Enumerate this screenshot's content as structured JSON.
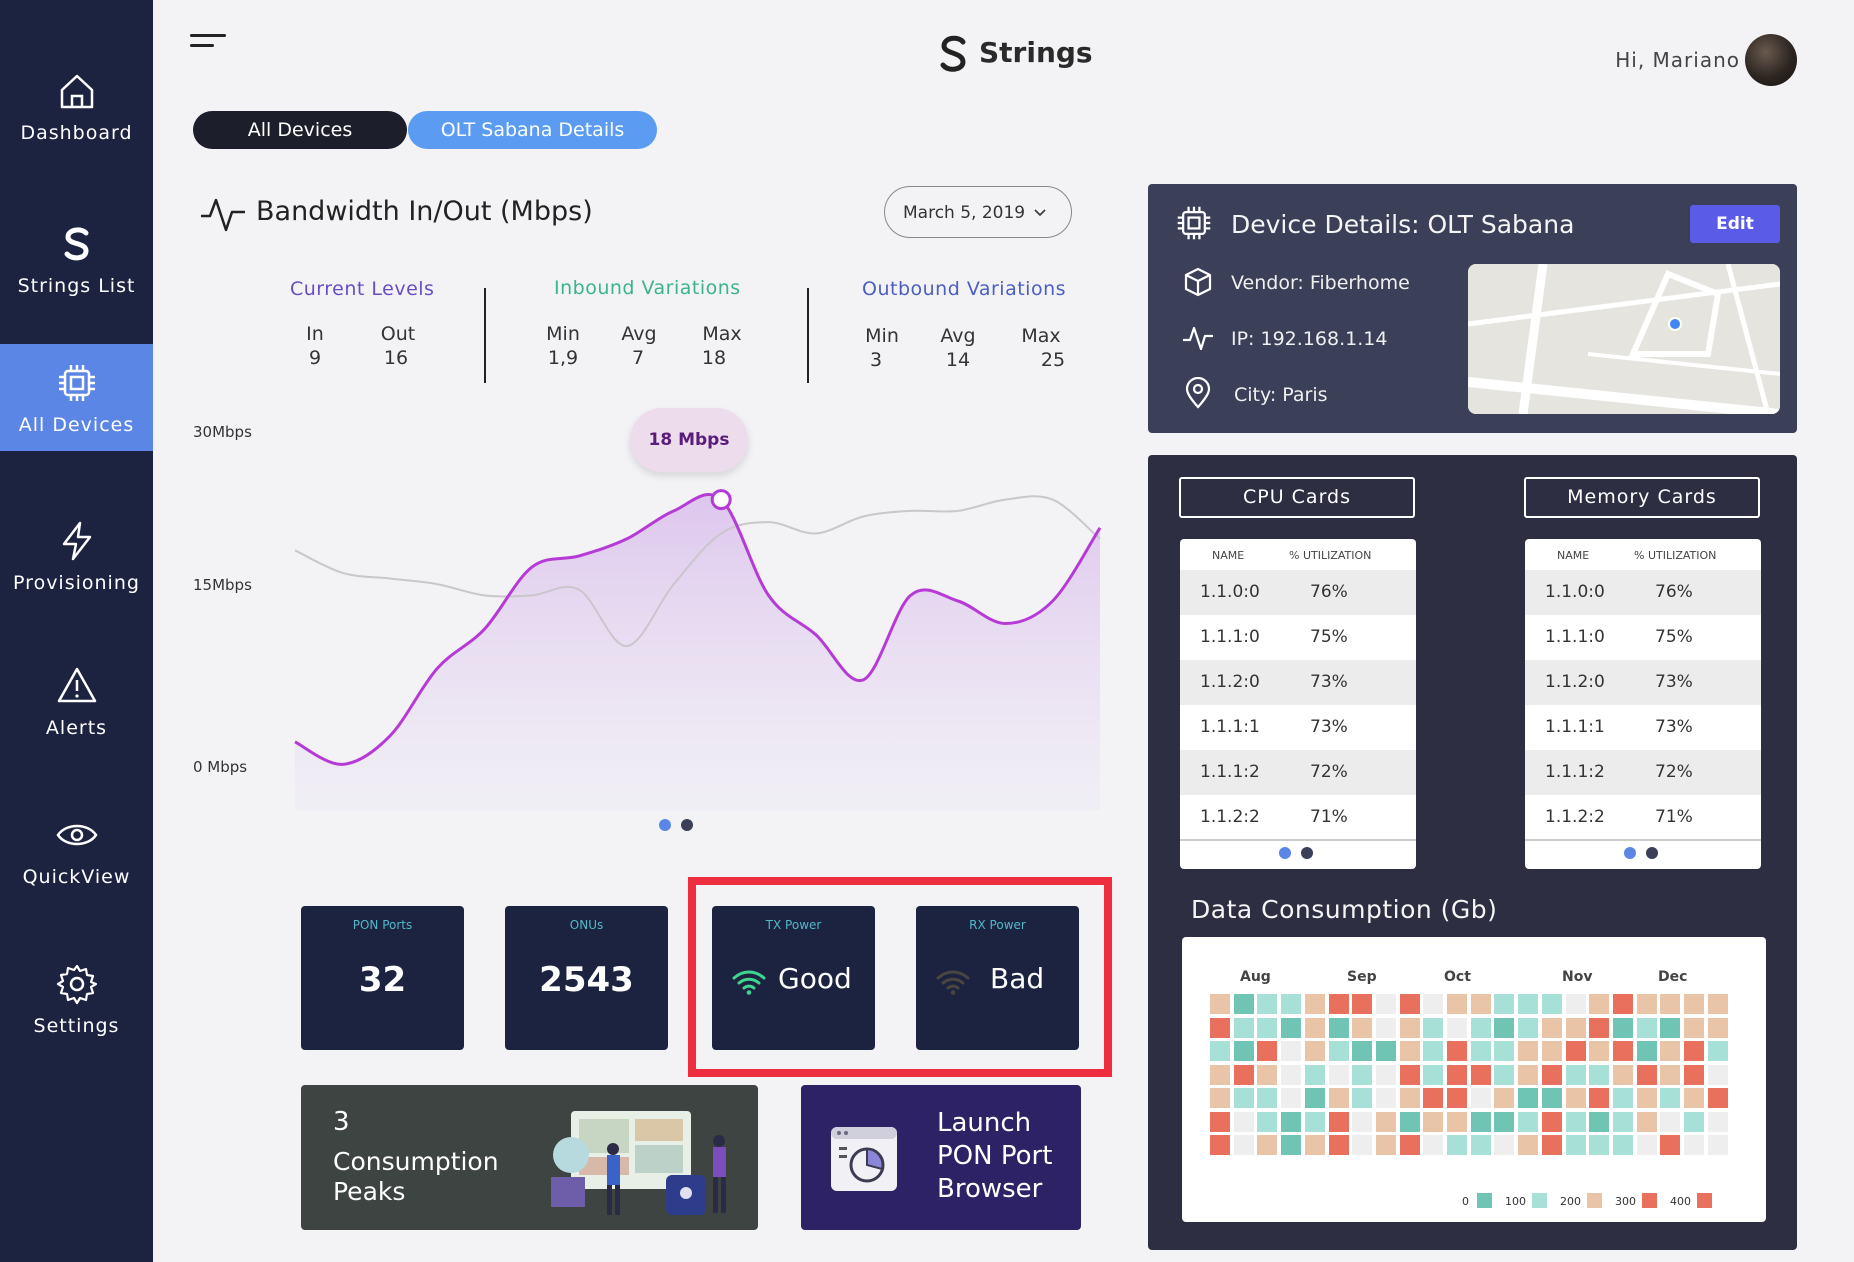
{
  "sidebar": {
    "items": [
      {
        "label": "Dashboard",
        "icon": "home-icon"
      },
      {
        "label": "Strings List",
        "icon": "strings-logo-icon"
      },
      {
        "label": "All Devices",
        "icon": "chip-icon"
      },
      {
        "label": "Provisioning",
        "icon": "lightning-icon"
      },
      {
        "label": "Alerts",
        "icon": "warning-icon"
      },
      {
        "label": "QuickView",
        "icon": "eye-icon"
      },
      {
        "label": "Settings",
        "icon": "gear-icon"
      }
    ],
    "active_index": 2
  },
  "header": {
    "brand": "Strings",
    "greeting": "Hi, Mariano"
  },
  "tabs": [
    {
      "label": "All Devices"
    },
    {
      "label": "OLT Sabana Details"
    }
  ],
  "bandwidth": {
    "title": "Bandwidth In/Out (Mbps)",
    "date": "March 5, 2019",
    "current": {
      "heading": "Current Levels",
      "labels": [
        "In",
        "Out"
      ],
      "values": [
        "9",
        "16"
      ]
    },
    "inbound": {
      "heading": "Inbound Variations",
      "labels": [
        "Min",
        "Avg",
        "Max"
      ],
      "values": [
        "1,9",
        "7",
        "18"
      ]
    },
    "outbound": {
      "heading": "Outbound Variations",
      "labels": [
        "Min",
        "Avg",
        "Max"
      ],
      "values": [
        "3",
        "14",
        "25"
      ]
    },
    "tooltip": "18 Mbps"
  },
  "chart_data": {
    "type": "area",
    "y_ticks": [
      "30Mbps",
      "15Mbps",
      "0 Mbps"
    ],
    "ylim": [
      0,
      30
    ],
    "series": [
      {
        "values": [
          2.5,
          0.5,
          3,
          9,
          12.5,
          18,
          19,
          20.5,
          23,
          24,
          15.5,
          12,
          8,
          15.5,
          15,
          13,
          15,
          21.5
        ]
      },
      {
        "values": [
          19.5,
          17.5,
          17,
          16.5,
          15.5,
          15.5,
          16,
          11,
          16.5,
          21,
          22,
          21,
          22.5,
          23,
          23,
          24,
          24,
          20.5
        ]
      }
    ]
  },
  "cards": {
    "pon_ports": {
      "title": "PON Ports",
      "value": "32"
    },
    "onus": {
      "title": "ONUs",
      "value": "2543"
    },
    "tx_power": {
      "title": "TX Power",
      "value": "Good"
    },
    "rx_power": {
      "title": "RX Power",
      "value": "Bad"
    }
  },
  "peaks": {
    "count": "3",
    "label": "Consumption Peaks"
  },
  "launch": {
    "label": "Launch PON Port Browser"
  },
  "device": {
    "title": "Device Details: OLT Sabana",
    "edit": "Edit",
    "vendor": "Vendor: Fiberhome",
    "ip": "IP: 192.168.1.14",
    "city": "City: Paris"
  },
  "cpu_cards": {
    "button": "CPU Cards",
    "headers": [
      "NAME",
      "% UTILIZATION"
    ],
    "rows": [
      [
        "1.1.0:0",
        "76%"
      ],
      [
        "1.1.1:0",
        "75%"
      ],
      [
        "1.1.2:0",
        "73%"
      ],
      [
        "1.1.1:1",
        "73%"
      ],
      [
        "1.1.1:2",
        "72%"
      ],
      [
        "1.1.2:2",
        "71%"
      ]
    ]
  },
  "memory_cards": {
    "button": "Memory Cards",
    "headers": [
      "NAME",
      "% UTILIZATION"
    ],
    "rows": [
      [
        "1.1.0:0",
        "76%"
      ],
      [
        "1.1.1:0",
        "75%"
      ],
      [
        "1.1.2:0",
        "73%"
      ],
      [
        "1.1.1:1",
        "73%"
      ],
      [
        "1.1.1:2",
        "72%"
      ],
      [
        "1.1.2:2",
        "71%"
      ]
    ]
  },
  "data_consumption": {
    "title": "Data Consumption (Gb)",
    "months": [
      "Aug",
      "Sep",
      "Oct",
      "Nov",
      "Dec"
    ],
    "legend": [
      "0",
      "100",
      "200",
      "300",
      "400"
    ],
    "colors": [
      "#6fc4b4",
      "#a7e0d6",
      "#e9c4a6",
      "#e8705c"
    ],
    "grid": [
      [
        2,
        0,
        1,
        1,
        2,
        3,
        3,
        -1,
        3,
        -1,
        2,
        2,
        1,
        1,
        1,
        -1,
        2,
        3,
        2,
        2,
        2,
        2
      ],
      [
        3,
        1,
        1,
        0,
        2,
        0,
        2,
        -1,
        2,
        1,
        -1,
        1,
        0,
        1,
        2,
        2,
        3,
        0,
        1,
        0,
        2,
        2
      ],
      [
        1,
        0,
        3,
        -1,
        2,
        1,
        0,
        0,
        2,
        1,
        3,
        1,
        1,
        2,
        2,
        3,
        2,
        3,
        0,
        2,
        3,
        1
      ],
      [
        2,
        3,
        2,
        -1,
        1,
        -1,
        1,
        -1,
        3,
        1,
        3,
        3,
        1,
        2,
        3,
        1,
        1,
        2,
        3,
        2,
        3,
        -1
      ],
      [
        2,
        1,
        1,
        -1,
        0,
        2,
        1,
        -1,
        2,
        3,
        3,
        -1,
        2,
        0,
        0,
        2,
        3,
        1,
        2,
        1,
        2,
        3
      ],
      [
        3,
        -1,
        1,
        0,
        1,
        3,
        -1,
        2,
        0,
        2,
        2,
        0,
        0,
        1,
        3,
        1,
        0,
        1,
        2,
        -1,
        1,
        -1
      ],
      [
        3,
        -1,
        2,
        0,
        2,
        3,
        -1,
        2,
        3,
        -1,
        1,
        1,
        -1,
        2,
        3,
        1,
        1,
        1,
        -1,
        3,
        -1,
        -1
      ]
    ]
  }
}
